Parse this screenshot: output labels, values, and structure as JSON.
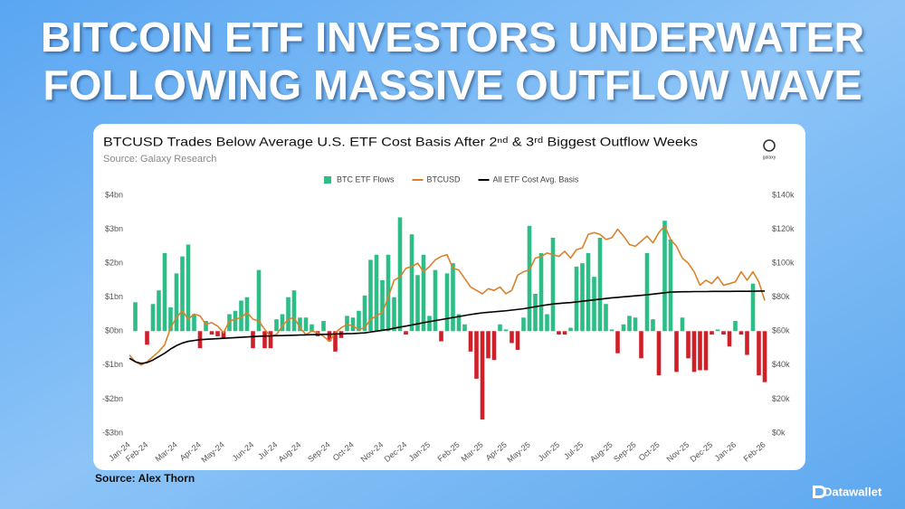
{
  "headline": [
    "BITCOIN ETF INVESTORS UNDERWATER",
    "FOLLOWING MASSIVE OUTFLOW WAVE"
  ],
  "source_note": "Source: Alex Thorn",
  "brand": "Datawallet",
  "chart_data": {
    "type": "bar_line",
    "title": "BTCUSD Trades Below Average U.S. ETF Cost Basis After 2ⁿᵈ & 3ʳᵈ Biggest Outflow Weeks",
    "subtitle": "Source: Galaxy Research",
    "logo": "galaxy",
    "categories": [
      "Jan-24",
      null,
      null,
      "Feb-24",
      null,
      null,
      null,
      null,
      "Mar-24",
      null,
      null,
      null,
      "Apr-24",
      null,
      null,
      null,
      "May-24",
      null,
      null,
      null,
      null,
      "Jun-24",
      null,
      null,
      null,
      "Jul-24",
      null,
      null,
      null,
      "Aug-24",
      null,
      null,
      null,
      null,
      "Sep-24",
      null,
      null,
      null,
      "Oct-24",
      null,
      null,
      null,
      null,
      "Nov-24",
      null,
      null,
      null,
      "Dec-24",
      null,
      null,
      null,
      "Jan-25",
      null,
      null,
      null,
      null,
      "Feb-25",
      null,
      null,
      null,
      "Mar-25",
      null,
      null,
      null,
      "Apr-25",
      null,
      null,
      null,
      "May-25",
      null,
      null,
      null,
      null,
      "Jun-25",
      null,
      null,
      null,
      "Jul-25",
      null,
      null,
      null,
      null,
      "Aug-25",
      null,
      null,
      null,
      "Sep-25",
      null,
      null,
      null,
      "Oct-25",
      null,
      null,
      null,
      null,
      "Nov-25",
      null,
      null,
      null,
      "Dec-25",
      null,
      null,
      null,
      "Jan-26",
      null,
      null,
      null,
      null,
      "Feb-26"
    ],
    "series": [
      {
        "name": "BTC ETF Flows",
        "type": "bar",
        "color": "#2dbd86",
        "negative_color": "#d01f27",
        "axis": "y",
        "values": [
          0,
          0.85,
          0,
          -0.4,
          0.8,
          1.2,
          2.3,
          0.7,
          1.7,
          2.2,
          2.55,
          0.5,
          -0.5,
          0.3,
          -0.1,
          -0.15,
          -0.2,
          0.5,
          0.6,
          0.9,
          1.0,
          -0.5,
          1.8,
          -0.5,
          -0.5,
          0.35,
          0.5,
          1.0,
          1.2,
          0.4,
          0.4,
          0.2,
          -0.15,
          0.3,
          -0.3,
          -0.6,
          -0.2,
          0.45,
          0.4,
          0.6,
          1.05,
          2.1,
          2.25,
          1.5,
          2.25,
          1.0,
          3.35,
          -0.1,
          2.85,
          1.65,
          2.25,
          0.45,
          1.8,
          -0.3,
          1.7,
          2.0,
          0.5,
          0.2,
          -0.6,
          -1.4,
          -2.6,
          -0.8,
          -0.85,
          0.2,
          0.05,
          -0.35,
          -0.55,
          0.4,
          3.1,
          1.1,
          2.3,
          0.5,
          2.75,
          -0.1,
          -0.1,
          0.1,
          1.9,
          2.0,
          2.3,
          1.6,
          2.75,
          0.8,
          0.05,
          -0.65,
          0.2,
          0.45,
          0.4,
          -0.8,
          2.3,
          0.35,
          -1.3,
          3.25,
          2.7,
          -1.2,
          0.4,
          -0.8,
          -1.2,
          -1.15,
          -1.15,
          -0.1,
          0.05,
          -0.1,
          -0.45,
          0.3,
          -0.1,
          -0.7,
          1.4,
          -1.3,
          -1.5
        ]
      },
      {
        "name": "BTCUSD",
        "type": "line",
        "color": "#d9822b",
        "axis": "y2",
        "values": [
          46,
          42,
          40,
          42,
          45,
          48,
          52,
          62,
          68,
          72,
          67,
          70,
          69,
          64,
          65,
          63,
          59,
          66,
          67,
          68,
          71,
          67,
          66,
          61,
          57,
          58,
          63,
          67,
          68,
          62,
          58,
          60,
          59,
          57,
          54,
          59,
          62,
          64,
          63,
          61,
          62,
          67,
          69,
          71,
          80,
          90,
          92,
          97,
          98,
          100,
          95,
          98,
          102,
          104,
          105,
          97,
          96,
          91,
          86,
          84,
          82,
          85,
          84,
          86,
          82,
          84,
          93,
          95,
          96,
          103,
          104,
          106,
          105,
          104,
          107,
          103,
          108,
          109,
          117,
          118,
          117,
          114,
          115,
          120,
          116,
          111,
          110,
          113,
          116,
          112,
          118,
          122,
          114,
          110,
          103,
          100,
          95,
          87,
          90,
          88,
          92,
          87,
          88,
          89,
          95,
          90,
          95,
          89,
          78
        ]
      },
      {
        "name": "All ETF Cost Avg. Basis",
        "type": "line",
        "color": "#000000",
        "axis": "y2",
        "values": [
          44,
          42,
          41,
          41.5,
          43,
          45,
          47,
          49.5,
          51.5,
          53,
          54,
          54.5,
          55,
          55.2,
          55.4,
          55.6,
          55.8,
          56,
          56.2,
          56.4,
          56.6,
          56.8,
          57,
          57.1,
          57.2,
          57.3,
          57.4,
          57.5,
          57.6,
          57.7,
          57.8,
          57.9,
          58,
          58.1,
          58.2,
          58.3,
          58.4,
          58.5,
          58.6,
          58.8,
          59,
          59.5,
          60,
          60.5,
          61,
          61.7,
          62.4,
          63,
          63.6,
          64.3,
          65,
          65.6,
          66.2,
          66.8,
          67.4,
          68,
          68.6,
          69.2,
          69.8,
          70.3,
          70.8,
          71.1,
          71.4,
          71.7,
          72,
          72.4,
          72.8,
          73.2,
          73.8,
          74.4,
          75,
          75.5,
          76,
          76.3,
          76.6,
          76.8,
          77.2,
          77.6,
          78,
          78.4,
          78.8,
          79.2,
          79.6,
          79.9,
          80.2,
          80.5,
          80.8,
          81.1,
          81.4,
          81.8,
          82.2,
          82.6,
          83,
          83.1,
          83.2,
          83.2,
          83.3,
          83.3,
          83.3,
          83.4,
          83.4,
          83.4,
          83.4,
          83.5,
          83.5,
          83.5,
          83.5,
          83.6,
          83.6
        ]
      }
    ],
    "ylim": [
      -3,
      4
    ],
    "yticks": [
      {
        "value": -3,
        "label": "-$3bn"
      },
      {
        "value": -2,
        "label": "-$2bn"
      },
      {
        "value": -1,
        "label": "-$1bn"
      },
      {
        "value": 0,
        "label": "$0bn"
      },
      {
        "value": 1,
        "label": "$1bn"
      },
      {
        "value": 2,
        "label": "$2bn"
      },
      {
        "value": 3,
        "label": "$3bn"
      },
      {
        "value": 4,
        "label": "$4bn"
      }
    ],
    "y2lim": [
      0,
      140
    ],
    "y2ticks": [
      {
        "value": 0,
        "label": "$0k"
      },
      {
        "value": 20,
        "label": "$20k"
      },
      {
        "value": 40,
        "label": "$40k"
      },
      {
        "value": 60,
        "label": "$60k"
      },
      {
        "value": 80,
        "label": "$80k"
      },
      {
        "value": 100,
        "label": "$100k"
      },
      {
        "value": 120,
        "label": "$120k"
      },
      {
        "value": 140,
        "label": "$140k"
      }
    ],
    "legend": "top",
    "grid": false
  }
}
